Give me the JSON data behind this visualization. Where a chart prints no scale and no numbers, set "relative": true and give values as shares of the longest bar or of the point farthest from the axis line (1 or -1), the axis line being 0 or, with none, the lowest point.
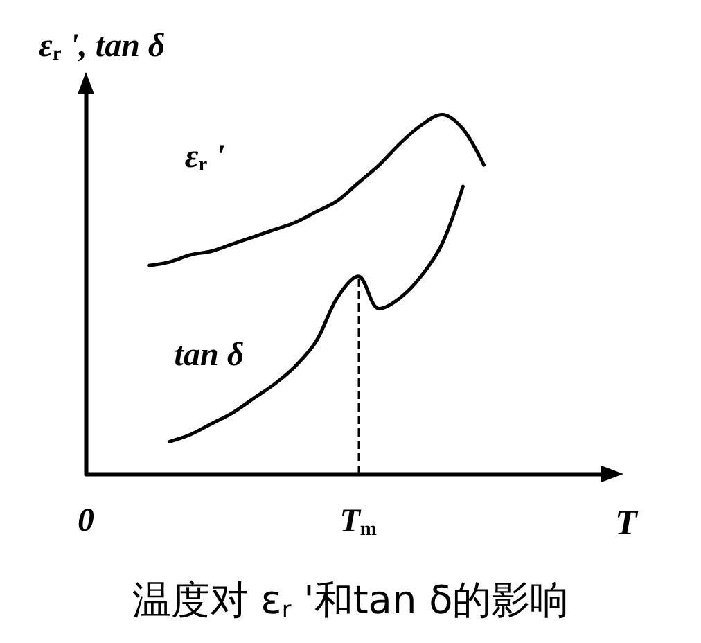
{
  "chart_data": {
    "type": "line",
    "title": "温度对 ε$_{r}$ '和tan δ的影响",
    "ylabel": "ε$_{r}$ ', tan δ",
    "xlabel": "T",
    "relative": true,
    "categories": [
      "0",
      null,
      null,
      null,
      null,
      null,
      null,
      null,
      null,
      null,
      null,
      null,
      null,
      "T$_{m}$",
      null,
      null,
      null,
      null,
      null,
      null,
      null,
      null,
      null,
      null,
      null,
      null
    ],
    "marker": "none",
    "line_style": "solid",
    "series": [
      {
        "name": "ε$_{r}$ '",
        "color": "#000000",
        "values": [
          null,
          null,
          null,
          0.58,
          0.59,
          0.61,
          0.62,
          0.64,
          0.66,
          0.68,
          0.7,
          0.73,
          0.76,
          0.81,
          0.86,
          0.92,
          0.97,
          1,
          0.96,
          0.86,
          null,
          null,
          null,
          null,
          null,
          null
        ]
      },
      {
        "name": "tan δ",
        "color": "#000000",
        "values": [
          null,
          null,
          null,
          null,
          0.09,
          0.11,
          0.14,
          0.17,
          0.21,
          0.25,
          0.3,
          0.37,
          0.49,
          0.55,
          0.46,
          0.49,
          0.55,
          0.64,
          0.8,
          null,
          null,
          null,
          null,
          null,
          null,
          null
        ]
      }
    ],
    "ref_lines": [
      {
        "axis": "x",
        "value": "T$_{m}$",
        "line_style": "dashed",
        "color": "#000000"
      }
    ]
  }
}
